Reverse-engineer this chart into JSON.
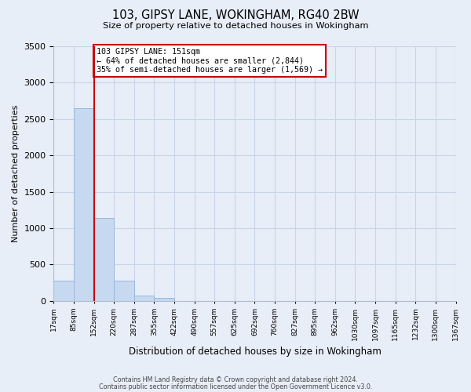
{
  "title": "103, GIPSY LANE, WOKINGHAM, RG40 2BW",
  "subtitle": "Size of property relative to detached houses in Wokingham",
  "xlabel": "Distribution of detached houses by size in Wokingham",
  "ylabel": "Number of detached properties",
  "bin_labels": [
    "17sqm",
    "85sqm",
    "152sqm",
    "220sqm",
    "287sqm",
    "355sqm",
    "422sqm",
    "490sqm",
    "557sqm",
    "625sqm",
    "692sqm",
    "760sqm",
    "827sqm",
    "895sqm",
    "962sqm",
    "1030sqm",
    "1097sqm",
    "1165sqm",
    "1232sqm",
    "1300sqm",
    "1367sqm"
  ],
  "counts": [
    275,
    2650,
    1140,
    280,
    75,
    40,
    0,
    0,
    0,
    0,
    0,
    0,
    0,
    0,
    0,
    0,
    0,
    0,
    0,
    0
  ],
  "bar_color": "#c6d9f0",
  "bar_edge_color": "#9ab8d8",
  "property_line_color": "#cc0000",
  "property_line_bin_index": 2,
  "annotation_title": "103 GIPSY LANE: 151sqm",
  "annotation_line1": "← 64% of detached houses are smaller (2,844)",
  "annotation_line2": "35% of semi-detached houses are larger (1,569) →",
  "annotation_box_color": "#ffffff",
  "annotation_box_edge_color": "#cc0000",
  "ylim": [
    0,
    3500
  ],
  "yticks": [
    0,
    500,
    1000,
    1500,
    2000,
    2500,
    3000,
    3500
  ],
  "grid_color": "#c8d4e8",
  "background_color": "#e8eef8",
  "plot_bg_color": "#e8eef8",
  "footer1": "Contains HM Land Registry data © Crown copyright and database right 2024.",
  "footer2": "Contains public sector information licensed under the Open Government Licence v3.0."
}
